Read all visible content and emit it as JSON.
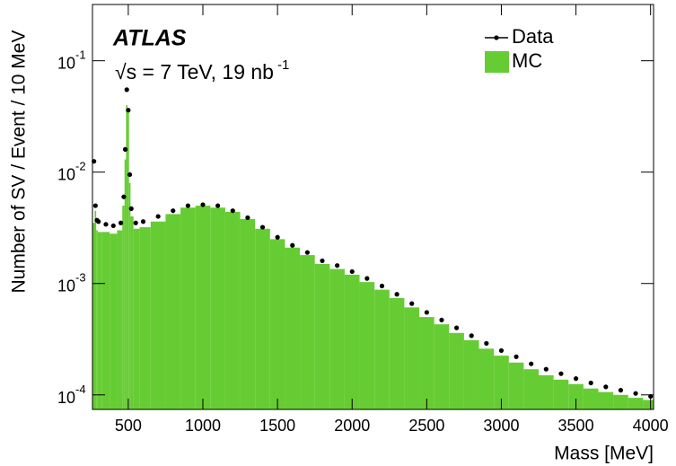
{
  "chart_data": {
    "type": "histogram",
    "experiment": "ATLAS",
    "subtitle": "√s = 7 TeV, 19 nb",
    "subtitle_exponent": "-1",
    "x_label": "Mass [MeV]",
    "y_label": "Number of SV / Event / 10 MeV",
    "log_y": true,
    "legend": "top-right",
    "xlim": [
      260,
      4020
    ],
    "ylim": [
      7.4e-05,
      0.32
    ],
    "xticks": [
      500,
      1000,
      1500,
      2000,
      2500,
      3000,
      3500,
      4000
    ],
    "yticks": [
      {
        "value": 0.1,
        "label": "10",
        "exponent": "-1"
      },
      {
        "value": 0.01,
        "label": "10",
        "exponent": "-2"
      },
      {
        "value": 0.001,
        "label": "10",
        "exponent": "-3"
      },
      {
        "value": 0.0001,
        "label": "10",
        "exponent": "-4"
      }
    ],
    "x": [
      270,
      280,
      290,
      300,
      350,
      400,
      450,
      470,
      480,
      490,
      500,
      510,
      520,
      550,
      600,
      700,
      800,
      900,
      1000,
      1100,
      1200,
      1300,
      1400,
      1500,
      1600,
      1700,
      1800,
      1900,
      2000,
      2100,
      2200,
      2300,
      2400,
      2500,
      2600,
      2700,
      2800,
      2900,
      3000,
      3100,
      3200,
      3300,
      3400,
      3500,
      3600,
      3700,
      3800,
      3900,
      4000
    ],
    "series": [
      {
        "name": "MC",
        "color": "#66cc33",
        "style": "bars",
        "values": [
          0.0035,
          0.0045,
          0.003,
          0.0029,
          0.0029,
          0.0028,
          0.003,
          0.005,
          0.013,
          0.04,
          0.036,
          0.008,
          0.004,
          0.0031,
          0.0032,
          0.0036,
          0.0042,
          0.0048,
          0.005,
          0.0048,
          0.0044,
          0.0038,
          0.0031,
          0.0025,
          0.0021,
          0.0018,
          0.0015,
          0.00135,
          0.0012,
          0.00103,
          0.00088,
          0.00074,
          0.00061,
          0.0005,
          0.00043,
          0.00036,
          0.00031,
          0.00026,
          0.000225,
          0.000195,
          0.00017,
          0.00015,
          0.000137,
          0.000125,
          0.000114,
          0.000106,
          0.0001,
          9.4e-05,
          9e-05
        ]
      },
      {
        "name": "Data",
        "color": "#000000",
        "style": "points",
        "values": [
          0.0125,
          0.005,
          0.0037,
          0.0036,
          0.0034,
          0.0033,
          0.0035,
          0.006,
          0.016,
          0.055,
          0.036,
          0.0095,
          0.0047,
          0.0035,
          0.0036,
          0.004,
          0.0045,
          0.005,
          0.0051,
          0.005,
          0.0045,
          0.0039,
          0.0032,
          0.0026,
          0.0022,
          0.0019,
          0.0016,
          0.00145,
          0.00128,
          0.00111,
          0.00095,
          0.0008,
          0.00066,
          0.00055,
          0.00047,
          0.0004,
          0.00034,
          0.00029,
          0.00025,
          0.00022,
          0.00019,
          0.00017,
          0.000155,
          0.00014,
          0.000128,
          0.000118,
          0.00011,
          0.000103,
          9.7e-05
        ]
      }
    ]
  }
}
